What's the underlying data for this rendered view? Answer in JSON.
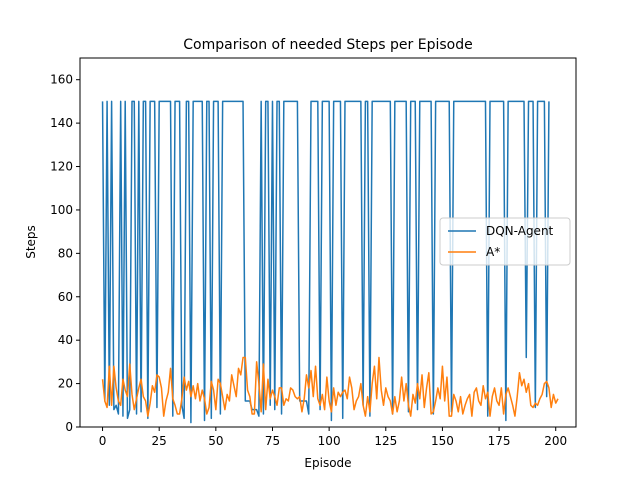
{
  "chart_data": {
    "type": "line",
    "title": "Comparison of needed Steps per Episode",
    "xlabel": "Episode",
    "ylabel": "Steps",
    "xlim": [
      -9.95,
      208.95
    ],
    "ylim": [
      0,
      170
    ],
    "xticks": [
      0,
      25,
      50,
      75,
      100,
      125,
      150,
      175,
      200
    ],
    "yticks": [
      0,
      20,
      40,
      60,
      80,
      100,
      120,
      140,
      160
    ],
    "grid": false,
    "legend_position": "center-right",
    "series": [
      {
        "name": "DQN-Agent",
        "color": "#1f77b4",
        "values": [
          150,
          12,
          150,
          10,
          150,
          8,
          10,
          6,
          150,
          5,
          150,
          4,
          8,
          150,
          150,
          6,
          150,
          7,
          150,
          150,
          4,
          150,
          150,
          150,
          9,
          150,
          150,
          150,
          150,
          150,
          150,
          5,
          150,
          150,
          150,
          10,
          4,
          150,
          150,
          2,
          150,
          150,
          150,
          150,
          150,
          3,
          150,
          150,
          4,
          150,
          150,
          150,
          6,
          150,
          150,
          150,
          150,
          150,
          150,
          150,
          150,
          150,
          150,
          12,
          12,
          12,
          8,
          8,
          8,
          5,
          150,
          6,
          150,
          150,
          10,
          150,
          8,
          150,
          150,
          6,
          150,
          150,
          150,
          150,
          150,
          150,
          150,
          12,
          12,
          12,
          12,
          6,
          150,
          150,
          150,
          150,
          8,
          150,
          150,
          150,
          150,
          3,
          150,
          150,
          150,
          150,
          4,
          150,
          150,
          150,
          150,
          150,
          150,
          150,
          150,
          10,
          150,
          150,
          5,
          150,
          150,
          150,
          150,
          150,
          150,
          150,
          150,
          150,
          6,
          150,
          150,
          150,
          150,
          150,
          150,
          7,
          150,
          150,
          150,
          8,
          150,
          150,
          150,
          150,
          150,
          150,
          6,
          150,
          150,
          150,
          150,
          150,
          150,
          150,
          7,
          150,
          150,
          150,
          150,
          150,
          150,
          150,
          150,
          150,
          150,
          150,
          150,
          150,
          150,
          150,
          5,
          150,
          150,
          150,
          150,
          150,
          150,
          150,
          3,
          150,
          150,
          150,
          150,
          150,
          150,
          150,
          150,
          32,
          150,
          150,
          150,
          9,
          150,
          150,
          150,
          150,
          14,
          150
        ]
      },
      {
        "name": "A*",
        "color": "#ff7f0e",
        "values": [
          22,
          12,
          9,
          28,
          10,
          28,
          18,
          12,
          10,
          22,
          17,
          14,
          29,
          15,
          8,
          13,
          18,
          22,
          14,
          12,
          5,
          11,
          19,
          16,
          24,
          23,
          18,
          5,
          12,
          16,
          27,
          13,
          10,
          6,
          6,
          13,
          23,
          17,
          21,
          14,
          19,
          13,
          20,
          12,
          17,
          13,
          6,
          9,
          21,
          17,
          8,
          22,
          20,
          14,
          8,
          15,
          12,
          24,
          19,
          14,
          27,
          24,
          32,
          32,
          17,
          14,
          6,
          6,
          30,
          20,
          7,
          29,
          8,
          22,
          13,
          17,
          14,
          10,
          18,
          18,
          10,
          13,
          12,
          18,
          17,
          14,
          13,
          14,
          7,
          13,
          24,
          18,
          26,
          14,
          28,
          13,
          10,
          15,
          8,
          23,
          12,
          7,
          18,
          10,
          16,
          14,
          16,
          17,
          13,
          23,
          18,
          8,
          12,
          14,
          20,
          10,
          5,
          14,
          7,
          20,
          28,
          13,
          32,
          17,
          10,
          18,
          14,
          12,
          6,
          14,
          7,
          12,
          23,
          12,
          20,
          10,
          5,
          15,
          11,
          20,
          13,
          24,
          9,
          18,
          25,
          6,
          7,
          12,
          18,
          13,
          28,
          12,
          23,
          5,
          5,
          15,
          12,
          7,
          14,
          6,
          10,
          13,
          15,
          5,
          16,
          18,
          12,
          10,
          19,
          13,
          16,
          5,
          14,
          18,
          12,
          10,
          18,
          6,
          15,
          18,
          14,
          10,
          5,
          14,
          25,
          19,
          22,
          16,
          20,
          10,
          9,
          11,
          10,
          13,
          15,
          20,
          21,
          18,
          9,
          15,
          11,
          13
        ]
      }
    ]
  }
}
